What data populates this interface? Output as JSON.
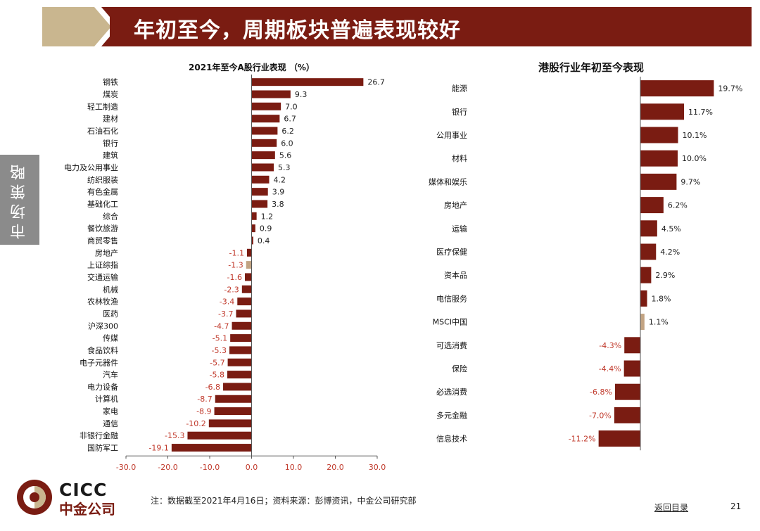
{
  "title": "年初至今，周期板块普遍表现较好",
  "side_tab": "市场策略",
  "colors": {
    "bar": "#7a1c12",
    "highlight": "#c2a382",
    "negative_label": "#c0392b",
    "positive_label": "#222222",
    "title_band": "#7a1c12",
    "title_tan": "#c9b68f"
  },
  "chart_data": [
    {
      "type": "bar",
      "orientation": "horizontal",
      "title": "2021年至今A股行业表现 （%）",
      "xlim": [
        -30,
        30
      ],
      "xticks": [
        "-30.0",
        "-20.0",
        "-10.0",
        "0.0",
        "10.0",
        "20.0",
        "30.0"
      ],
      "categories": [
        "钢铁",
        "煤炭",
        "轻工制造",
        "建材",
        "石油石化",
        "银行",
        "建筑",
        "电力及公用事业",
        "纺织服装",
        "有色金属",
        "基础化工",
        "综合",
        "餐饮旅游",
        "商贸零售",
        "房地产",
        "上证综指",
        "交通运输",
        "机械",
        "农林牧渔",
        "医药",
        "沪深300",
        "传媒",
        "食品饮料",
        "电子元器件",
        "汽车",
        "电力设备",
        "计算机",
        "家电",
        "通信",
        "非银行金融",
        "国防军工"
      ],
      "values": [
        26.7,
        9.3,
        7.0,
        6.7,
        6.2,
        6.0,
        5.6,
        5.3,
        4.2,
        3.9,
        3.8,
        1.2,
        0.9,
        0.4,
        -1.1,
        -1.3,
        -1.6,
        -2.3,
        -3.4,
        -3.7,
        -4.7,
        -5.1,
        -5.3,
        -5.7,
        -5.8,
        -6.8,
        -8.7,
        -8.9,
        -10.2,
        -15.3,
        -19.1
      ],
      "labels": [
        "26.7",
        "9.3",
        "7.0",
        "6.7",
        "6.2",
        "6.0",
        "5.6",
        "5.3",
        "4.2",
        "3.9",
        "3.8",
        "1.2",
        "0.9",
        "0.4",
        "-1.1",
        "-1.3",
        "-1.6",
        "-2.3",
        "-3.4",
        "-3.7",
        "-4.7",
        "-5.1",
        "-5.3",
        "-5.7",
        "-5.8",
        "-6.8",
        "-8.7",
        "-8.9",
        "-10.2",
        "-15.3",
        "-19.1"
      ],
      "highlight": [
        "上证综指"
      ]
    },
    {
      "type": "bar",
      "orientation": "horizontal",
      "title": "港股行业年初至今表现",
      "categories": [
        "能源",
        "银行",
        "公用事业",
        "材料",
        "媒体和娱乐",
        "房地产",
        "运输",
        "医疗保健",
        "资本品",
        "电信服务",
        "MSCI中国",
        "可选消费",
        "保险",
        "必选消费",
        "多元金融",
        "信息技术"
      ],
      "values": [
        19.7,
        11.7,
        10.1,
        10.0,
        9.7,
        6.2,
        4.5,
        4.2,
        2.9,
        1.8,
        1.1,
        -4.3,
        -4.4,
        -6.8,
        -7.0,
        -11.2
      ],
      "labels": [
        "19.7%",
        "11.7%",
        "10.1%",
        "10.0%",
        "9.7%",
        "6.2%",
        "4.5%",
        "4.2%",
        "2.9%",
        "1.8%",
        "1.1%",
        "-4.3%",
        "-4.4%",
        "-6.8%",
        "-7.0%",
        "-11.2%"
      ],
      "highlight": [
        "MSCI中国"
      ]
    }
  ],
  "logo": {
    "en": "CICC",
    "cn": "中金公司"
  },
  "footnote": "注：数据截至2021年4月16日；资料来源：彭博资讯，中金公司研究部",
  "back_link": "返回目录",
  "page_number": "21"
}
